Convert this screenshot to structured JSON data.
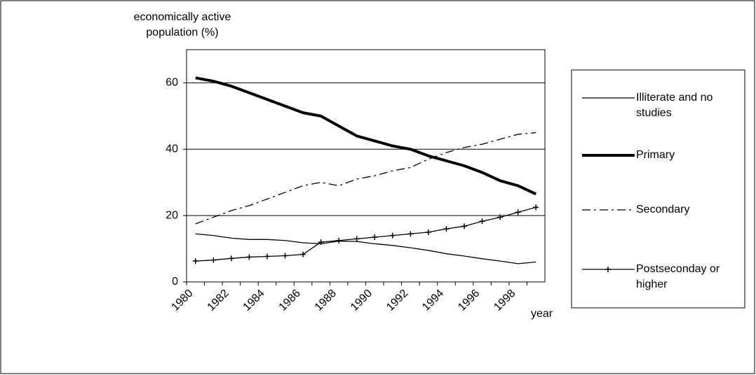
{
  "chart_data": {
    "type": "line",
    "y_label": "economically active population (%)",
    "x_label": "year",
    "categories": [
      "1980",
      null,
      "1982",
      null,
      "1984",
      null,
      "1986",
      null,
      "1988",
      null,
      "1990",
      null,
      "1992",
      null,
      "1994",
      null,
      "1996",
      null,
      "1998",
      null
    ],
    "series": [
      {
        "name": "Illiterate and no studies",
        "color": "#000000",
        "width": 1.3,
        "dash": "none",
        "marker": "none",
        "values": [
          14.5,
          14,
          13.2,
          12.8,
          12.8,
          12.5,
          11.8,
          11.5,
          12.3,
          12.2,
          11.5,
          11,
          10.3,
          9.5,
          8.5,
          7.8,
          7,
          6.3,
          5.5,
          6
        ]
      },
      {
        "name": "Primary",
        "color": "#000000",
        "width": 4,
        "dash": "none",
        "marker": "none",
        "values": [
          61.5,
          60.5,
          59,
          57,
          55,
          53,
          51,
          50,
          47,
          44,
          42.5,
          41,
          40,
          38,
          36.5,
          35,
          33,
          30.5,
          29,
          26.5
        ]
      },
      {
        "name": "Secondary",
        "color": "#000000",
        "width": 1.3,
        "dash": "12,5,3,5",
        "marker": "none",
        "values": [
          17.5,
          19.5,
          21.5,
          23,
          25,
          27,
          29,
          30,
          29,
          31,
          32,
          33.5,
          34.5,
          37,
          39,
          40.5,
          41.5,
          43,
          44.5,
          45
        ]
      },
      {
        "name": "Postseconday or higher",
        "color": "#000000",
        "width": 1.3,
        "dash": "none",
        "marker": "plus",
        "values": [
          6.3,
          6.6,
          7.1,
          7.5,
          7.7,
          7.9,
          8.3,
          12,
          12.5,
          13,
          13.5,
          14,
          14.5,
          15,
          16,
          16.8,
          18.3,
          19.5,
          21,
          22.5
        ]
      }
    ],
    "ylim": [
      0,
      70
    ],
    "yticks": [
      0,
      20,
      40,
      60
    ],
    "grid": true,
    "legend": "right"
  }
}
